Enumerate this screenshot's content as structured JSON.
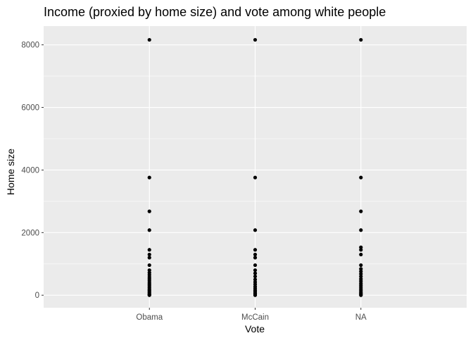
{
  "chart_data": {
    "type": "scatter",
    "title": "Income (proxied by home size) and vote among white people",
    "xlabel": "Vote",
    "ylabel": "Home size",
    "categories": [
      "Obama",
      "McCain",
      "NA"
    ],
    "y_ticks": [
      0,
      2000,
      4000,
      6000,
      8000
    ],
    "ylim": [
      -400,
      8600
    ],
    "grid": true,
    "theme": {
      "panel_bg": "#EBEBEB",
      "grid_color": "#FFFFFF",
      "point_color": "#000000"
    },
    "series": [
      {
        "category": "Obama",
        "values": [
          8160,
          3760,
          2680,
          2080,
          1450,
          1300,
          1200,
          960,
          800,
          720,
          650,
          580,
          520,
          460,
          400,
          350,
          300,
          250,
          200,
          160,
          120,
          80,
          40,
          20,
          0
        ]
      },
      {
        "category": "McCain",
        "values": [
          8160,
          3760,
          2080,
          1450,
          1300,
          1200,
          960,
          800,
          700,
          600,
          500,
          420,
          350,
          280,
          220,
          160,
          110,
          60,
          30,
          0
        ]
      },
      {
        "category": "NA",
        "values": [
          8160,
          3760,
          2680,
          2080,
          1530,
          1450,
          1300,
          960,
          840,
          760,
          680,
          600,
          520,
          450,
          380,
          320,
          260,
          200,
          150,
          100,
          60,
          30,
          0
        ]
      }
    ]
  }
}
